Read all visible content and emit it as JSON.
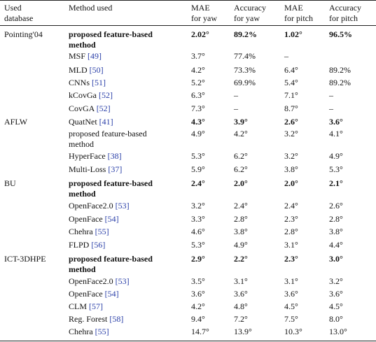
{
  "header": {
    "col_db": [
      "Used",
      "database"
    ],
    "col_method": "Method used",
    "col_mae_yaw": [
      "MAE",
      "for yaw"
    ],
    "col_acc_yaw": [
      "Accuracy",
      "for yaw"
    ],
    "col_mae_pitch": [
      "MAE",
      "for pitch"
    ],
    "col_acc_pitch": [
      "Accuracy",
      "for pitch"
    ]
  },
  "rows": [
    {
      "db": "Pointing'04",
      "method": [
        "proposed feature-based",
        "method"
      ],
      "cite": "",
      "mae_yaw": "2.02°",
      "acc_yaw": "89.2%",
      "mae_pitch": "1.02°",
      "acc_pitch": "96.5%",
      "bold": true
    },
    {
      "db": "",
      "method": [
        "MSF"
      ],
      "cite": "[49]",
      "mae_yaw": "3.7°",
      "acc_yaw": "77.4%",
      "mae_pitch": "–",
      "acc_pitch": "",
      "bold": false
    },
    {
      "db": "",
      "method": [
        "MLD"
      ],
      "cite": "[50]",
      "mae_yaw": "4.2°",
      "acc_yaw": "73.3%",
      "mae_pitch": "6.4°",
      "acc_pitch": "89.2%",
      "bold": false
    },
    {
      "db": "",
      "method": [
        "CNNs"
      ],
      "cite": "[51]",
      "mae_yaw": "5.2°",
      "acc_yaw": "69.9%",
      "mae_pitch": "5.4°",
      "acc_pitch": "89.2%",
      "bold": false
    },
    {
      "db": "",
      "method": [
        "kCovGa"
      ],
      "cite": "[52]",
      "mae_yaw": "6.3°",
      "acc_yaw": "–",
      "mae_pitch": "7.1°",
      "acc_pitch": "–",
      "bold": false
    },
    {
      "db": "",
      "method": [
        "CovGA"
      ],
      "cite": "[52]",
      "mae_yaw": "7.3°",
      "acc_yaw": "–",
      "mae_pitch": "8.7°",
      "acc_pitch": "–",
      "bold": false
    },
    {
      "db": "AFLW",
      "method": [
        "QuatNet"
      ],
      "cite": "[41]",
      "mae_yaw": "4.3°",
      "acc_yaw": "3.9°",
      "mae_pitch": "2.6°",
      "acc_pitch": "3.6°",
      "bold": true,
      "method_plain": true
    },
    {
      "db": "",
      "method": [
        "proposed feature-based",
        "method"
      ],
      "cite": "",
      "mae_yaw": "4.9°",
      "acc_yaw": "4.2°",
      "mae_pitch": "3.2°",
      "acc_pitch": "4.1°",
      "bold": false
    },
    {
      "db": "",
      "method": [
        "HyperFace"
      ],
      "cite": "[38]",
      "mae_yaw": "5.3°",
      "acc_yaw": "6.2°",
      "mae_pitch": "3.2°",
      "acc_pitch": "4.9°",
      "bold": false
    },
    {
      "db": "",
      "method": [
        "Multi-Loss"
      ],
      "cite": "[37]",
      "mae_yaw": "5.9°",
      "acc_yaw": "6.2°",
      "mae_pitch": "3.8°",
      "acc_pitch": "5.3°",
      "bold": false
    },
    {
      "db": "BU",
      "method": [
        "proposed feature-based",
        "method"
      ],
      "cite": "",
      "mae_yaw": "2.4°",
      "acc_yaw": "2.0°",
      "mae_pitch": "2.0°",
      "acc_pitch": "2.1°",
      "bold": true
    },
    {
      "db": "",
      "method": [
        "OpenFace2.0"
      ],
      "cite": "[53]",
      "mae_yaw": "3.2°",
      "acc_yaw": "2.4°",
      "mae_pitch": "2.4°",
      "acc_pitch": "2.6°",
      "bold": false
    },
    {
      "db": "",
      "method": [
        "OpenFace"
      ],
      "cite": "[54]",
      "mae_yaw": "3.3°",
      "acc_yaw": "2.8°",
      "mae_pitch": "2.3°",
      "acc_pitch": "2.8°",
      "bold": false
    },
    {
      "db": "",
      "method": [
        "Chehra"
      ],
      "cite": "[55]",
      "mae_yaw": "4.6°",
      "acc_yaw": "3.8°",
      "mae_pitch": "2.8°",
      "acc_pitch": "3.8°",
      "bold": false
    },
    {
      "db": "",
      "method": [
        "FLPD"
      ],
      "cite": "[56]",
      "mae_yaw": "5.3°",
      "acc_yaw": "4.9°",
      "mae_pitch": "3.1°",
      "acc_pitch": "4.4°",
      "bold": false
    },
    {
      "db": "ICT-3DHPE",
      "method": [
        "proposed feature-based",
        "method"
      ],
      "cite": "",
      "mae_yaw": "2.9°",
      "acc_yaw": "2.2°",
      "mae_pitch": "2.3°",
      "acc_pitch": "3.0°",
      "bold": true
    },
    {
      "db": "",
      "method": [
        "OpenFace2.0"
      ],
      "cite": "[53]",
      "mae_yaw": "3.5°",
      "acc_yaw": "3.1°",
      "mae_pitch": "3.1°",
      "acc_pitch": "3.2°",
      "bold": false
    },
    {
      "db": "",
      "method": [
        "OpenFace"
      ],
      "cite": "[54]",
      "mae_yaw": "3.6°",
      "acc_yaw": "3.6°",
      "mae_pitch": "3.6°",
      "acc_pitch": "3.6°",
      "bold": false
    },
    {
      "db": "",
      "method": [
        "CLM"
      ],
      "cite": "[57]",
      "mae_yaw": "4.2°",
      "acc_yaw": "4.8°",
      "mae_pitch": "4.5°",
      "acc_pitch": "4.5°",
      "bold": false
    },
    {
      "db": "",
      "method": [
        "Reg. Forest"
      ],
      "cite": "[58]",
      "mae_yaw": "9.4°",
      "acc_yaw": "7.2°",
      "mae_pitch": "7.5°",
      "acc_pitch": "8.0°",
      "bold": false
    },
    {
      "db": "",
      "method": [
        "Chehra"
      ],
      "cite": "[55]",
      "mae_yaw": "14.7°",
      "acc_yaw": "13.9°",
      "mae_pitch": "10.3°",
      "acc_pitch": "13.0°",
      "bold": false
    }
  ]
}
